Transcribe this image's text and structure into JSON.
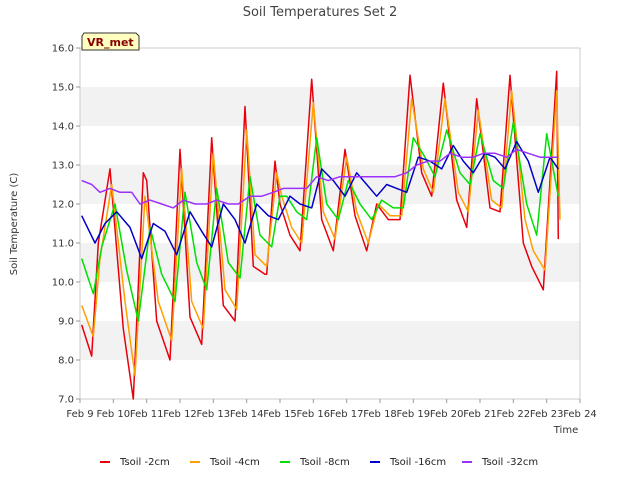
{
  "chart_data": {
    "type": "line",
    "title": "Soil Temperatures Set 2",
    "xlabel": "Time",
    "ylabel": "Soil Temperature (C)",
    "badge": "VR_met",
    "xlim": [
      0,
      15
    ],
    "ylim": [
      7.0,
      16.0
    ],
    "yticks": [
      7.0,
      8.0,
      9.0,
      10.0,
      11.0,
      12.0,
      13.0,
      14.0,
      15.0,
      16.0
    ],
    "xtick_labels": [
      "Feb 9",
      "Feb 10",
      "Feb 11",
      "Feb 12",
      "Feb 13",
      "Feb 14",
      "Feb 15",
      "Feb 16",
      "Feb 17",
      "Feb 18",
      "Feb 19",
      "Feb 20",
      "Feb 21",
      "Feb 22",
      "Feb 23",
      "Feb 24"
    ],
    "grid": "horizontal bands",
    "legend_position": "bottom",
    "series": [
      {
        "name": "Tsoil -2cm",
        "color": "#e8000b",
        "x": [
          0.05,
          0.35,
          0.55,
          0.9,
          1.3,
          1.6,
          1.9,
          2.0,
          2.3,
          2.7,
          3.0,
          3.3,
          3.65,
          3.95,
          4.3,
          4.65,
          4.95,
          5.2,
          5.55,
          5.6,
          5.85,
          6.0,
          6.3,
          6.6,
          6.95,
          7.25,
          7.6,
          7.95,
          8.25,
          8.6,
          8.9,
          9.25,
          9.6,
          9.9,
          10.25,
          10.55,
          10.9,
          11.3,
          11.6,
          11.9,
          12.3,
          12.6,
          12.9,
          13.3,
          13.55,
          13.9,
          14.3,
          14.35
        ],
        "y": [
          8.9,
          8.1,
          11.0,
          12.9,
          8.8,
          7.0,
          12.8,
          12.6,
          9.0,
          8.0,
          13.4,
          9.1,
          8.4,
          13.7,
          9.4,
          9.0,
          14.5,
          10.4,
          10.2,
          10.2,
          13.1,
          12.0,
          11.2,
          10.8,
          15.2,
          11.6,
          10.8,
          13.4,
          11.7,
          10.8,
          12.0,
          11.6,
          11.6,
          15.3,
          12.8,
          12.2,
          15.1,
          12.1,
          11.4,
          14.7,
          11.9,
          11.8,
          15.3,
          11.0,
          10.4,
          9.8,
          15.4,
          11.1
        ]
      },
      {
        "name": "Tsoil -4cm",
        "color": "#ff9f00",
        "x": [
          0.05,
          0.4,
          0.6,
          0.95,
          1.35,
          1.65,
          1.95,
          2.35,
          2.75,
          3.05,
          3.35,
          3.7,
          4.0,
          4.35,
          4.7,
          5.0,
          5.25,
          5.6,
          5.9,
          6.05,
          6.35,
          6.65,
          7.0,
          7.3,
          7.65,
          8.0,
          8.3,
          8.65,
          8.95,
          9.3,
          9.65,
          9.95,
          10.3,
          10.6,
          10.95,
          11.35,
          11.65,
          11.95,
          12.35,
          12.65,
          12.95,
          13.35,
          13.6,
          13.95,
          14.3,
          14.4
        ],
        "y": [
          9.4,
          8.6,
          10.6,
          12.5,
          9.5,
          7.6,
          12.2,
          9.5,
          8.5,
          12.9,
          9.5,
          8.8,
          13.3,
          9.8,
          9.3,
          13.9,
          10.7,
          10.4,
          12.8,
          12.2,
          11.4,
          11.0,
          14.6,
          11.8,
          11.1,
          13.2,
          11.8,
          11.0,
          12.0,
          11.7,
          11.7,
          14.7,
          12.9,
          12.3,
          14.7,
          12.3,
          11.8,
          14.4,
          12.1,
          11.9,
          14.9,
          11.6,
          10.8,
          10.3,
          14.9,
          11.6
        ]
      },
      {
        "name": "Tsoil -8cm",
        "color": "#00e000",
        "x": [
          0.05,
          0.4,
          0.65,
          1.05,
          1.4,
          1.75,
          2.1,
          2.45,
          2.85,
          3.15,
          3.5,
          3.8,
          4.1,
          4.45,
          4.8,
          5.1,
          5.4,
          5.75,
          6.0,
          6.2,
          6.5,
          6.8,
          7.1,
          7.4,
          7.75,
          8.05,
          8.4,
          8.75,
          9.05,
          9.4,
          9.7,
          10.0,
          10.35,
          10.65,
          11.0,
          11.4,
          11.7,
          12.0,
          12.4,
          12.7,
          13.0,
          13.4,
          13.7,
          14.0,
          14.35
        ],
        "y": [
          10.6,
          9.7,
          10.9,
          12.0,
          10.3,
          9.0,
          11.4,
          10.2,
          9.5,
          12.3,
          10.5,
          9.8,
          12.4,
          10.5,
          10.1,
          12.7,
          11.2,
          10.9,
          12.2,
          12.2,
          11.8,
          11.6,
          13.7,
          12.0,
          11.6,
          12.6,
          12.0,
          11.6,
          12.1,
          11.9,
          11.9,
          13.7,
          13.2,
          12.7,
          13.9,
          12.8,
          12.5,
          13.8,
          12.6,
          12.4,
          14.1,
          12.0,
          11.2,
          13.8,
          12.2
        ]
      },
      {
        "name": "Tsoil -16cm",
        "color": "#0000c8",
        "x": [
          0.05,
          0.45,
          0.75,
          1.1,
          1.5,
          1.85,
          2.2,
          2.55,
          2.9,
          3.3,
          3.65,
          3.95,
          4.3,
          4.65,
          4.95,
          5.3,
          5.65,
          5.95,
          6.3,
          6.6,
          6.95,
          7.25,
          7.6,
          7.95,
          8.3,
          8.6,
          8.9,
          9.2,
          9.5,
          9.8,
          10.15,
          10.5,
          10.85,
          11.2,
          11.5,
          11.8,
          12.15,
          12.45,
          12.75,
          13.1,
          13.45,
          13.75,
          14.1,
          14.35
        ],
        "y": [
          11.7,
          11.0,
          11.5,
          11.8,
          11.4,
          10.6,
          11.5,
          11.3,
          10.7,
          11.8,
          11.3,
          10.9,
          12.0,
          11.6,
          11.0,
          12.0,
          11.7,
          11.6,
          12.2,
          12.0,
          11.9,
          12.9,
          12.6,
          12.2,
          12.8,
          12.5,
          12.2,
          12.5,
          12.4,
          12.3,
          13.2,
          13.1,
          12.9,
          13.5,
          13.1,
          12.8,
          13.3,
          13.2,
          12.9,
          13.6,
          13.1,
          12.3,
          13.2,
          12.9
        ]
      },
      {
        "name": "Tsoil -32cm",
        "color": "#9b30ff",
        "x": [
          0.05,
          0.35,
          0.6,
          0.9,
          1.2,
          1.55,
          1.8,
          2.1,
          2.45,
          2.8,
          3.1,
          3.45,
          3.8,
          4.1,
          4.45,
          4.75,
          5.1,
          5.45,
          5.8,
          6.1,
          6.45,
          6.8,
          7.1,
          7.45,
          7.8,
          8.1,
          8.45,
          8.8,
          9.1,
          9.45,
          9.8,
          10.1,
          10.45,
          10.8,
          11.1,
          11.45,
          11.8,
          12.1,
          12.45,
          12.8,
          13.1,
          13.45,
          13.8,
          14.1,
          14.35
        ],
        "y": [
          12.6,
          12.5,
          12.3,
          12.4,
          12.3,
          12.3,
          12.0,
          12.1,
          12.0,
          11.9,
          12.1,
          12.0,
          12.0,
          12.1,
          12.0,
          12.0,
          12.2,
          12.2,
          12.3,
          12.4,
          12.4,
          12.4,
          12.7,
          12.6,
          12.7,
          12.7,
          12.7,
          12.7,
          12.7,
          12.7,
          12.8,
          13.0,
          13.1,
          13.1,
          13.3,
          13.2,
          13.2,
          13.3,
          13.3,
          13.2,
          13.4,
          13.3,
          13.2,
          13.2,
          13.2
        ]
      }
    ]
  }
}
